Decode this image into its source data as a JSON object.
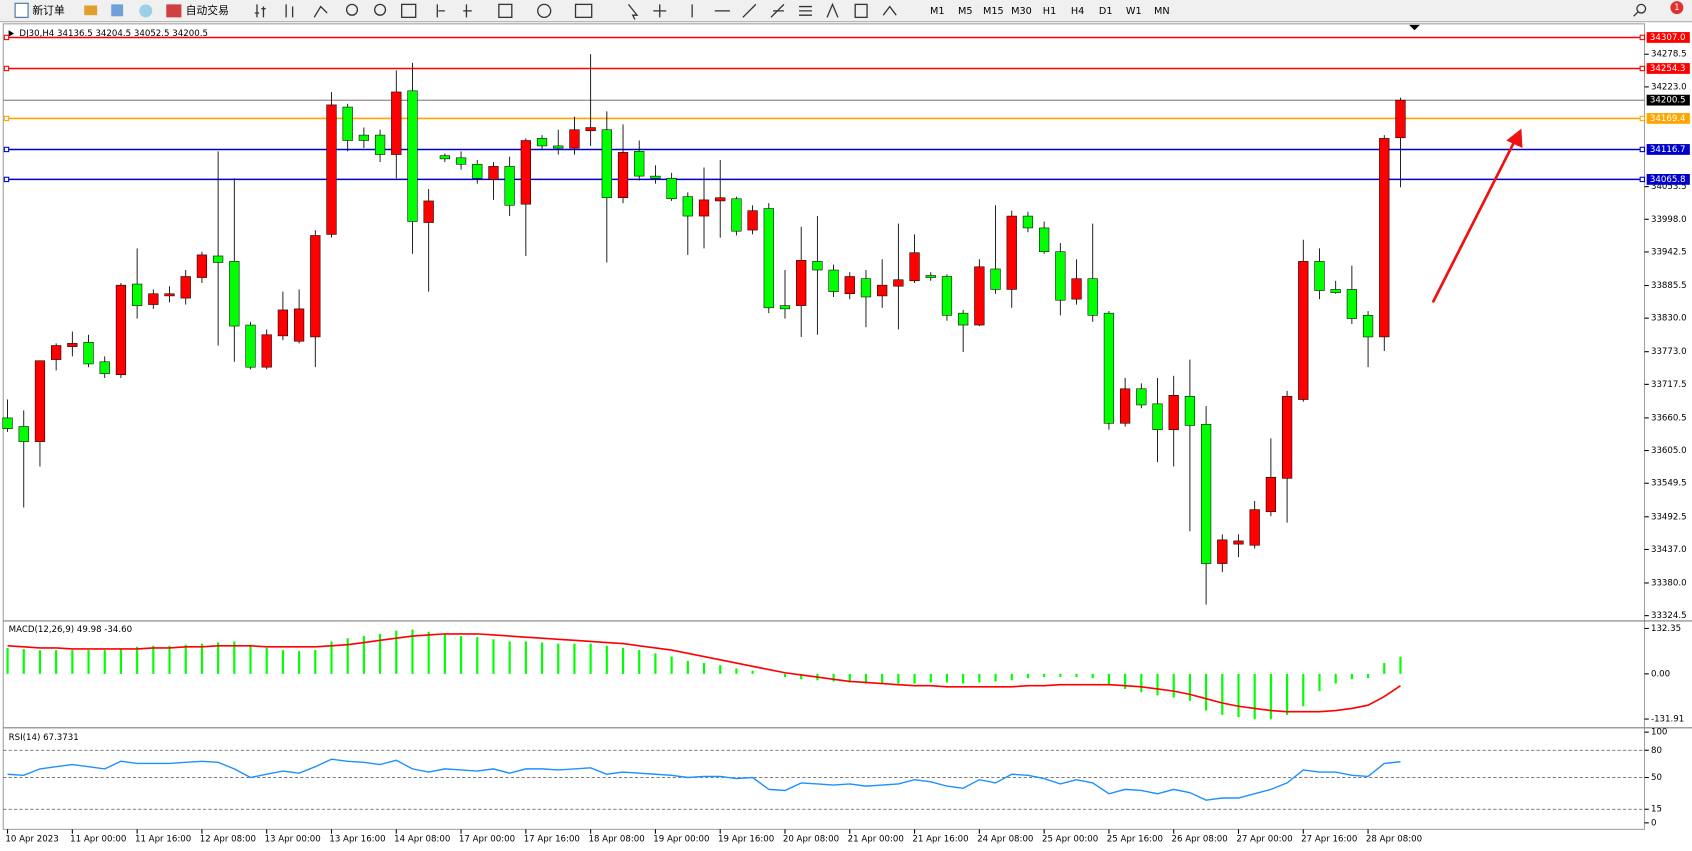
{
  "toolbar": {
    "new_order": "新订单",
    "auto_trading": "自动交易",
    "timeframes": [
      "M1",
      "M5",
      "M15",
      "M30",
      "H1",
      "H4",
      "D1",
      "W1",
      "MN"
    ],
    "badge": 1
  },
  "chart_data": {
    "type": "candlestick",
    "title": "DJ30,H4  34136.5 34204.5 34052.5 34200.5",
    "categories": [
      "10 Apr 2023",
      null,
      null,
      null,
      "11 Apr 00:00",
      null,
      null,
      null,
      "11 Apr 16:00",
      null,
      null,
      null,
      "12 Apr 08:00",
      null,
      null,
      null,
      "13 Apr 00:00",
      null,
      null,
      null,
      "13 Apr 16:00",
      null,
      null,
      null,
      "14 Apr 08:00",
      null,
      null,
      null,
      "17 Apr 00:00",
      null,
      null,
      null,
      "17 Apr 16:00",
      null,
      null,
      null,
      "18 Apr 08:00",
      null,
      null,
      null,
      "19 Apr 00:00",
      null,
      null,
      null,
      "19 Apr 16:00",
      null,
      null,
      null,
      "20 Apr 08:00",
      null,
      null,
      null,
      "21 Apr 00:00",
      null,
      null,
      null,
      "21 Apr 16:00",
      null,
      null,
      null,
      "24 Apr 08:00",
      null,
      null,
      null,
      "25 Apr 00:00",
      null,
      null,
      null,
      "25 Apr 16:00",
      null,
      null,
      null,
      "26 Apr 08:00",
      null,
      null,
      null,
      "27 Apr 00:00",
      null,
      null,
      null,
      "27 Apr 16:00",
      null,
      null,
      null,
      "28 Apr 08:00",
      null,
      null
    ],
    "open": [
      33660.5,
      33645.9,
      33620.2,
      33759.6,
      33781.6,
      33788.9,
      33755.9,
      33733.9,
      33888,
      33853.1,
      33867.8,
      33864.1,
      33899,
      33935.7,
      33926.5,
      33818.3,
      33746.7,
      33799.9,
      33790.8,
      33798.1,
      33972.3,
      34188.7,
      34141.1,
      34141.1,
      34108,
      34216.3,
      33992.5,
      34106.2,
      34102.5,
      34091.5,
      34065.9,
      34087.9,
      34023.7,
      34135.5,
      34122.7,
      34119,
      34148.4,
      34150.2,
      34034.7,
      34113.5,
      34071.4,
      34067.7,
      34036.5,
      34003.5,
      34029.2,
      34032.9,
      33979.7,
      34016.3,
      33851.3,
      33851.3,
      33926.5,
      33911.8,
      33871.5,
      33897.1,
      33867.8,
      33884.3,
      33893.5,
      33902.6,
      33900.8,
      33838.5,
      33818.3,
      33913.6,
      33878.8,
      34003.5,
      33983.3,
      33943,
      33862.3,
      33897.1,
      33838.5,
      33651.4,
      33710,
      33684.4,
      33640.4,
      33697.2,
      33649.6,
      33413,
      33446,
      33444.1,
      33501,
      33557.8,
      33691.7,
      33926.5,
      33878.8,
      33878.8,
      33834.8,
      33798.1,
      34136.5
    ],
    "high": [
      33691.7,
      33673.4,
      33757.7,
      33787.2,
      33807.3,
      33801.8,
      33765.1,
      33889.8,
      33948.5,
      33878.8,
      33884.3,
      33911.8,
      33943,
      34113.5,
      34067.7,
      33823.8,
      33810.9,
      33875.1,
      33878.8,
      33979.7,
      34214.4,
      34194.2,
      34153.9,
      34150.2,
      34251.1,
      34263.9,
      34049.4,
      34109.9,
      34113.5,
      34098.9,
      34095.2,
      34104.4,
      34135.5,
      34141.1,
      34150.2,
      34172.2,
      34278.6,
      34181.4,
      34159.4,
      34131.9,
      34089.7,
      34076.9,
      34043.9,
      34086,
      34098.9,
      34036.5,
      34021.8,
      34025.5,
      33911.8,
      33985.2,
      34003.5,
      33921,
      33908.2,
      33911.8,
      33930.1,
      33990.7,
      33972.3,
      33908.2,
      33904.5,
      33844,
      33930.1,
      34021.8,
      34012.7,
      34010.8,
      33994.3,
      33957.7,
      33930.1,
      33990.7,
      33842.1,
      33728.4,
      33719.2,
      33728.4,
      33732,
      33759.6,
      33680.7,
      33462.5,
      33462.5,
      33519.3,
      33625.7,
      33706.4,
      33963.2,
      33948.5,
      33893.5,
      33919.2,
      33842.1,
      34141.1,
      34204.5
    ],
    "low": [
      33636.7,
      33508.3,
      33578,
      33741.2,
      33765.1,
      33746.7,
      33728.4,
      33728.4,
      33829.3,
      33845.8,
      33856.8,
      33853.1,
      33889.8,
      33783.5,
      33755.9,
      33743,
      33743,
      33792.6,
      33787.2,
      33746.7,
      33966.8,
      34113.5,
      34119,
      34095.2,
      34067.7,
      33939.4,
      33875.1,
      34095.2,
      34082.4,
      34058.5,
      34031,
      34003.5,
      33935.7,
      34117.2,
      34108,
      34108,
      34122.7,
      33924.6,
      34025.5,
      34064,
      34058.5,
      34029.2,
      33937.5,
      33948.5,
      33966.8,
      33970.5,
      33972.3,
      33838.5,
      33829.3,
      33798.1,
      33801.8,
      33866,
      33862.3,
      33814.6,
      33847.6,
      33810.9,
      33889.8,
      33893.5,
      33825.6,
      33772.4,
      33816.6,
      33871.5,
      33847.6,
      33976,
      33939.4,
      33834.8,
      33853.1,
      33823.8,
      33640.4,
      33645.9,
      33677,
      33585.4,
      33578,
      33468,
      33343.3,
      33398.3,
      33424,
      33438.6,
      33493.6,
      33482.6,
      33688,
      33862.3,
      33871.5,
      33820.1,
      33746.7,
      33774.3,
      34052.5
    ],
    "close": [
      33642.2,
      33620.2,
      33757.7,
      33783.5,
      33787.2,
      33752.2,
      33735.7,
      33886.1,
      33851.3,
      33871.5,
      33871.5,
      33900.8,
      33937.5,
      33924.6,
      33816.6,
      33746.7,
      33801.8,
      33844,
      33845.8,
      33970.5,
      34192.4,
      34131.9,
      34131.9,
      34108,
      34214.4,
      33994.3,
      34029.2,
      34100.7,
      34091.5,
      34067.7,
      34087.9,
      34021.8,
      34131.9,
      34122.7,
      34119,
      34150.2,
      34153.9,
      34034.7,
      34111.7,
      34071.4,
      34067.7,
      34032.9,
      34003.5,
      34031,
      34034.7,
      33977.8,
      34012.7,
      33847.6,
      33845.8,
      33928.3,
      33911.8,
      33875.1,
      33900.8,
      33866,
      33886.1,
      33895.3,
      33941.2,
      33899,
      33834.8,
      33818.3,
      33917.3,
      33878.8,
      34003.5,
      33983.3,
      33943,
      33860.5,
      33897.1,
      33834.8,
      33651.4,
      33710,
      33682.5,
      33640.4,
      33699,
      33647.7,
      33413,
      33453.3,
      33451.5,
      33504.7,
      33559.7,
      33697.2,
      33926.5,
      33876.9,
      33873.3,
      33829.3,
      33798.1,
      34135.5,
      34200.5
    ],
    "up_color": "#ff0000",
    "down_color": "#00ff00",
    "wick_color": "#000000",
    "ylim": [
      33321,
      34321
    ],
    "yticks": [
      {
        "value": 34278.5,
        "label": "34278.5"
      },
      {
        "value": 34223,
        "label": "34223.0"
      },
      {
        "value": 34053.5,
        "label": "34053.5"
      },
      {
        "value": 33998,
        "label": "33998.0"
      },
      {
        "value": 33942.5,
        "label": "33942.5"
      },
      {
        "value": 33885.5,
        "label": "33885.5"
      },
      {
        "value": 33830,
        "label": "33830.0"
      },
      {
        "value": 33773,
        "label": "33773.0"
      },
      {
        "value": 33717.5,
        "label": "33717.5"
      },
      {
        "value": 33660.5,
        "label": "33660.5"
      },
      {
        "value": 33605,
        "label": "33605.0"
      },
      {
        "value": 33549.5,
        "label": "33549.5"
      },
      {
        "value": 33492.5,
        "label": "33492.5"
      },
      {
        "value": 33437,
        "label": "33437.0"
      },
      {
        "value": 33380,
        "label": "33380.0"
      },
      {
        "value": 33324.5,
        "label": "33324.5"
      }
    ],
    "levels": [
      {
        "value": 34307,
        "label": "34307.0",
        "color": "#ff0000"
      },
      {
        "value": 34254.3,
        "label": "34254.3",
        "color": "#ff0000"
      },
      {
        "value": 34169.4,
        "label": "34169.4",
        "color": "#ffa500"
      },
      {
        "value": 34116.7,
        "label": "34116.7",
        "color": "#0000cd"
      },
      {
        "value": 34065.8,
        "label": "34065.8",
        "color": "#0000cd"
      }
    ],
    "last_price": {
      "value": 34200.5,
      "label": "34200.5"
    },
    "macd": {
      "title": "MACD(12,26,9) 49.98 -34.60",
      "histogram": [
        75.6,
        72.5,
        69.3,
        69.3,
        69.3,
        69.3,
        69.3,
        72.5,
        78.8,
        81.9,
        81.9,
        85.1,
        88.2,
        91.4,
        94.5,
        85.1,
        75.6,
        69.3,
        66.2,
        69.3,
        94.5,
        104,
        110.3,
        116.6,
        126,
        129.2,
        122.9,
        116.6,
        110.3,
        107.1,
        100.8,
        94.5,
        94.5,
        91.4,
        88.2,
        88.2,
        88.2,
        81.9,
        75.6,
        69.3,
        59.9,
        50.4,
        37.8,
        31.5,
        25.2,
        15.8,
        9.5,
        0,
        -9.5,
        -15.8,
        -18.9,
        -22.1,
        -25.2,
        -28.4,
        -28.4,
        -28.4,
        -28.4,
        -25.2,
        -25.2,
        -28.4,
        -25.2,
        -22.1,
        -18.9,
        -12.6,
        -9.5,
        -9.5,
        -9.5,
        -12.6,
        -31.5,
        -44.1,
        -53.6,
        -63,
        -69.3,
        -78.8,
        -107.1,
        -119.7,
        -126,
        -132.3,
        -132.3,
        -119.7,
        -94.5,
        -50.4,
        -28.4,
        -15.8,
        -12.6,
        31.5,
        49.98
      ],
      "signal": [
        81.9,
        78.8,
        75.6,
        75.6,
        72.5,
        72.5,
        72.5,
        72.5,
        72.5,
        75.6,
        75.6,
        78.8,
        78.8,
        81.9,
        81.9,
        81.9,
        78.8,
        78.8,
        78.8,
        78.8,
        81.9,
        85.1,
        91.4,
        97.7,
        104,
        110.3,
        113.4,
        116.6,
        116.6,
        116.6,
        113.4,
        110.3,
        107.1,
        104,
        100.8,
        97.7,
        94.5,
        91.4,
        88.2,
        81.9,
        75.6,
        69.3,
        59.9,
        50.4,
        41,
        31.5,
        22.1,
        12.6,
        3.2,
        -3.2,
        -9.5,
        -15.8,
        -22.1,
        -25.2,
        -28.4,
        -31.5,
        -34.7,
        -34.7,
        -37.8,
        -37.8,
        -37.8,
        -37.8,
        -37.8,
        -34.7,
        -34.7,
        -31.5,
        -31.5,
        -31.5,
        -31.5,
        -34.7,
        -37.8,
        -44.1,
        -50.4,
        -59.9,
        -72.5,
        -85.1,
        -94.5,
        -100.8,
        -107.1,
        -110.3,
        -110.3,
        -110.3,
        -107.1,
        -100.8,
        -91.4,
        -66.2,
        -34.6
      ],
      "histogram_color": "#00ff00",
      "signal_color": "#ff0000",
      "ylim": [
        -151.2,
        151.2
      ],
      "yticks": [
        {
          "value": 132.35,
          "label": "132.35"
        },
        {
          "value": 0,
          "label": "0.00"
        },
        {
          "value": -131.91,
          "label": "-131.91"
        }
      ]
    },
    "rsi": {
      "title": "RSI(14) 67.3731",
      "values": [
        53.6,
        52.4,
        59.5,
        61.9,
        64.3,
        61.9,
        59.5,
        67.9,
        65.5,
        65.5,
        65.5,
        66.7,
        67.9,
        66.7,
        59.5,
        50,
        53.6,
        57.1,
        54.8,
        61.9,
        70.2,
        67.9,
        66.7,
        64.3,
        69,
        59.5,
        56,
        59.5,
        58.3,
        57.1,
        59.5,
        54.8,
        59.5,
        59.5,
        58.3,
        59.5,
        60.7,
        53.6,
        56,
        54.8,
        53.6,
        52.4,
        50,
        51.2,
        51.2,
        48.8,
        50,
        36.9,
        35.7,
        44,
        42.9,
        41.7,
        42.9,
        40.5,
        41.7,
        42.9,
        47.6,
        45.2,
        40.5,
        38.1,
        47.6,
        44,
        53.6,
        52.4,
        48.8,
        42.9,
        47.6,
        44,
        32.1,
        36.9,
        35.7,
        32.1,
        36.9,
        33.3,
        25,
        27.4,
        27.4,
        32.1,
        36.9,
        44,
        58.3,
        56,
        56,
        52.4,
        51.2,
        65.5,
        67.3731
      ],
      "color": "#1e90ff",
      "ylim": [
        0,
        100
      ],
      "yticks": [
        100,
        80,
        50,
        15,
        0
      ],
      "levels": [
        80,
        50,
        15
      ]
    }
  }
}
